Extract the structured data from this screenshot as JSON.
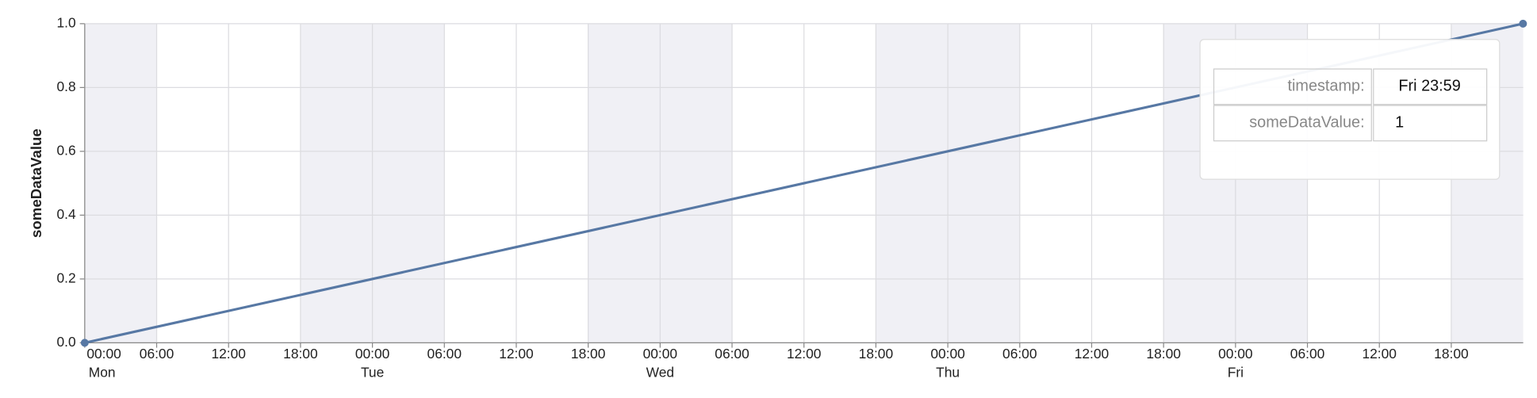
{
  "chart_data": {
    "type": "line",
    "y_label": "someDataValue",
    "x": [
      "Mon 00:00",
      "Fri 23:59"
    ],
    "values": [
      0,
      1
    ],
    "color": "#5778a4",
    "ylim": [
      0,
      1
    ],
    "yticks": [
      {
        "value": 0,
        "label": "0.0"
      },
      {
        "value": 0.2,
        "label": "0.2"
      },
      {
        "value": 0.4,
        "label": "0.4"
      },
      {
        "value": 0.6,
        "label": "0.6"
      },
      {
        "value": 0.8,
        "label": "0.8"
      },
      {
        "value": 1,
        "label": "1.0"
      }
    ],
    "xticks": [
      "00:00",
      "06:00",
      "12:00",
      "18:00",
      "00:00",
      "06:00",
      "12:00",
      "18:00",
      "00:00",
      "06:00",
      "12:00",
      "18:00",
      "00:00",
      "06:00",
      "12:00",
      "18:00",
      "00:00",
      "06:00",
      "12:00",
      "18:00"
    ],
    "day_labels": [
      "Mon",
      "Tue",
      "Wed",
      "Thu",
      "Fri"
    ],
    "grid": true,
    "tooltip": {
      "labels": [
        "timestamp:",
        "someDataValue:"
      ]
    }
  }
}
